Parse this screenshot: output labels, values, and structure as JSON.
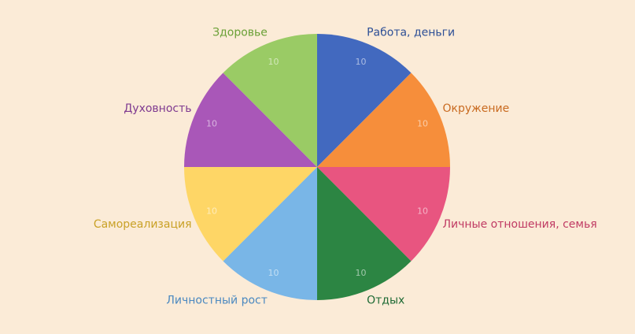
{
  "chart_data": {
    "type": "pie",
    "categories": [
      "Работа, деньги",
      "Окружение",
      "Личные отношения, семья",
      "Отдых",
      "Личностный рост",
      "Самореализация",
      "Духовность",
      "Здоровье"
    ],
    "values": [
      10,
      10,
      10,
      10,
      10,
      10,
      10,
      10
    ],
    "value_labels": [
      "10",
      "10",
      "10",
      "10",
      "10",
      "10",
      "10",
      "10"
    ],
    "colors": [
      "#4269bf",
      "#f68e3b",
      "#e85580",
      "#2c8543",
      "#79b6e7",
      "#fed666",
      "#a957b8",
      "#9acb65"
    ],
    "label_colors": [
      "#2d4f96",
      "#c96b21",
      "#c03a63",
      "#1e6a34",
      "#4a88c0",
      "#c9a126",
      "#7e3a90",
      "#6aa036"
    ],
    "start": "top",
    "direction": "clockwise",
    "title": "",
    "background": "#fbebd7"
  }
}
